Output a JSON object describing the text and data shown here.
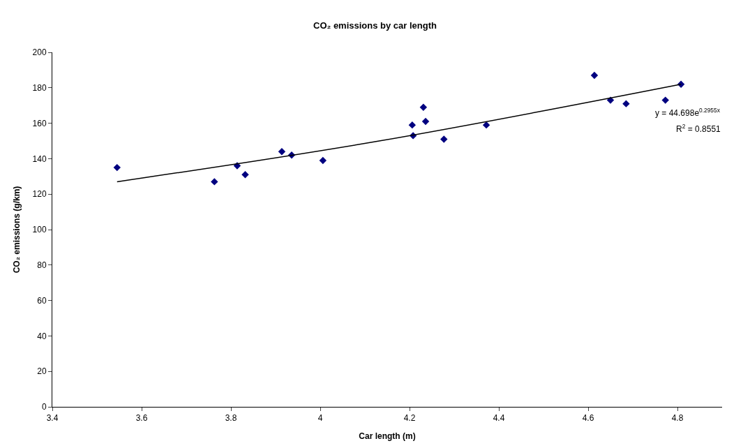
{
  "chart_data": {
    "type": "scatter",
    "title": "CO₂ emissions by car length",
    "xlabel": "Car length (m)",
    "ylabel": "CO₂ emissions (g/km)",
    "series": [
      {
        "color": "#000080",
        "marker": "diamond",
        "x": [
          3.545,
          3.763,
          3.814,
          3.832,
          3.914,
          3.936,
          4.006,
          4.206,
          4.208,
          4.231,
          4.236,
          4.277,
          4.372,
          4.614,
          4.65,
          4.685,
          4.773,
          4.808
        ],
        "values": [
          135,
          127,
          136,
          131,
          144,
          142,
          139,
          159,
          153,
          169,
          161,
          151,
          159,
          187,
          173,
          171,
          173,
          182
        ]
      },
      {
        "type": "line",
        "color": "#000000",
        "marker": "none",
        "line_style": "solid",
        "x": [
          3.545,
          4.132,
          4.808
        ],
        "values": [
          127,
          150,
          182
        ]
      }
    ],
    "annotations": [
      "y = 44.698e$^{0.2955x}$",
      "R$^{2}$ = 0.8551"
    ],
    "xlim": [
      3.4,
      4.9
    ],
    "xticks": [
      3.4,
      3.6,
      3.8,
      4,
      4.2,
      4.4,
      4.6,
      4.8
    ],
    "ylim": [
      0,
      200
    ],
    "yticks": [
      0,
      20,
      40,
      60,
      80,
      100,
      120,
      140,
      160,
      180,
      200
    ]
  }
}
